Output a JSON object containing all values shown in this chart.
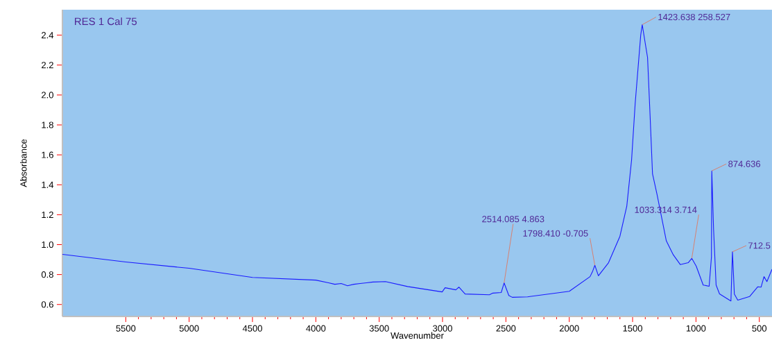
{
  "chart_data": {
    "type": "line",
    "title": "RES 1 Cal 75",
    "xlabel": "Wavenumber",
    "ylabel": "Absorbance",
    "xlim": [
      6000,
      400
    ],
    "ylim": [
      0.52,
      2.57
    ],
    "xticks": [
      5500,
      5000,
      4500,
      4000,
      3500,
      3000,
      2500,
      2000,
      1500,
      1000,
      500
    ],
    "yticks": [
      0.6,
      0.8,
      {
        "value": 1,
        "label": "1.0"
      },
      1.2,
      1.4,
      1.6,
      1.8,
      {
        "value": 2,
        "label": "2.0"
      },
      2.2,
      2.4
    ],
    "grid": false,
    "marker": "none",
    "line_style": "solid",
    "series": [
      {
        "color": "#1a1aff",
        "x": [
          6000,
          5500,
          5000,
          4500,
          4000,
          3900,
          3850,
          3800,
          3750,
          3700,
          3650,
          3600,
          3550,
          3450,
          3276,
          3003,
          2980,
          2895,
          2871,
          2822,
          2630,
          2603,
          2537,
          2514,
          2477,
          2450,
          2329,
          2000,
          1836,
          1815,
          1798,
          1770,
          1690,
          1600,
          1546,
          1508,
          1480,
          1436,
          1424,
          1382,
          1362,
          1343,
          1307,
          1234,
          1179,
          1124,
          1061,
          1048,
          1033,
          998,
          943,
          896,
          878,
          875,
          861,
          841,
          814,
          724,
          712,
          697,
          670,
          577,
          513,
          486,
          463,
          440,
          400
        ],
        "values": [
          0.935,
          0.884,
          0.842,
          0.781,
          0.763,
          0.745,
          0.735,
          0.74,
          0.725,
          0.735,
          0.74,
          0.745,
          0.75,
          0.753,
          0.72,
          0.684,
          0.712,
          0.698,
          0.716,
          0.67,
          0.665,
          0.676,
          0.68,
          0.744,
          0.66,
          0.648,
          0.651,
          0.688,
          0.786,
          0.823,
          0.862,
          0.792,
          0.879,
          1.056,
          1.257,
          1.567,
          1.94,
          2.4,
          2.47,
          2.25,
          1.86,
          1.474,
          1.335,
          1.025,
          0.932,
          0.867,
          0.879,
          0.893,
          0.908,
          0.856,
          0.73,
          0.722,
          0.916,
          1.493,
          1.102,
          0.73,
          0.671,
          0.623,
          0.952,
          0.67,
          0.629,
          0.653,
          0.718,
          0.716,
          0.786,
          0.753,
          0.835
        ]
      }
    ],
    "annotations": [
      {
        "text": "2514.085  4.863",
        "x": 2514,
        "y": 0.744
      },
      {
        "text": "1798.410  -0.705",
        "x": 1798,
        "y": 0.862
      },
      {
        "text": "1423.638  258.527",
        "x": 1424,
        "y": 2.47
      },
      {
        "text": "1033.314  3.714",
        "x": 1033,
        "y": 0.908
      },
      {
        "text": "874.636",
        "x": 875,
        "y": 1.493
      },
      {
        "text": "712.5",
        "x": 712,
        "y": 0.952
      }
    ]
  }
}
